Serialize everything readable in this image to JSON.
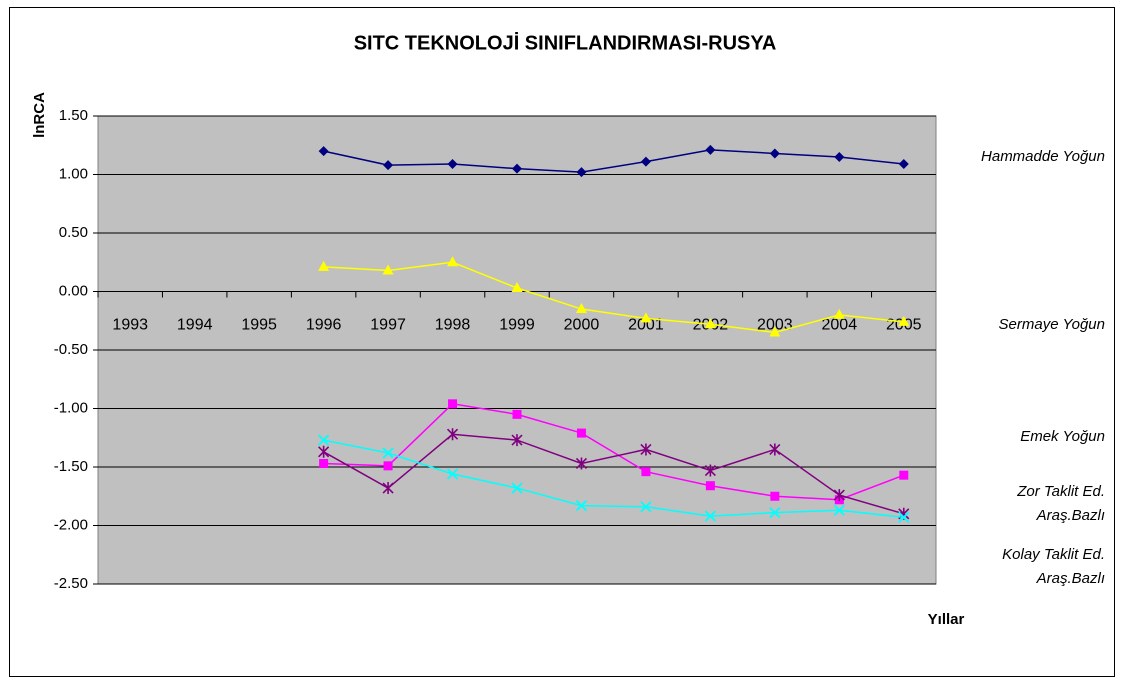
{
  "chart_data": {
    "type": "line",
    "title": "SITC TEKNOLOJİ SINIFLANDIRMASI-RUSYA",
    "y_label": "lnRCA",
    "x_label": "Yıllar",
    "categories": [
      "1993",
      "1994",
      "1995",
      "1996",
      "1997",
      "1998",
      "1999",
      "2000",
      "2001",
      "2002",
      "2003",
      "2004",
      "2005"
    ],
    "series": [
      {
        "name": "Hammadde Yoğun",
        "color": "#000080",
        "values": [
          null,
          null,
          null,
          1.2,
          1.08,
          1.09,
          1.05,
          1.02,
          1.11,
          1.21,
          1.18,
          1.15,
          1.09
        ]
      },
      {
        "name": "Sermaye Yoğun",
        "color": "#ffff00",
        "values": [
          null,
          null,
          null,
          0.21,
          0.18,
          0.25,
          0.03,
          -0.15,
          -0.23,
          -0.28,
          -0.35,
          -0.2,
          -0.26
        ]
      },
      {
        "name": "Emek Yoğun",
        "color": "#ff00ff",
        "values": [
          null,
          null,
          null,
          -1.47,
          -1.49,
          -0.96,
          -1.05,
          -1.21,
          -1.54,
          -1.66,
          -1.75,
          -1.78,
          -1.57
        ]
      },
      {
        "name": "Zor Taklit Ed. Araş.Bazlı",
        "color": "#800080",
        "values": [
          null,
          null,
          null,
          -1.37,
          -1.68,
          -1.22,
          -1.27,
          -1.47,
          -1.35,
          -1.53,
          -1.35,
          -1.74,
          -1.9
        ]
      },
      {
        "name": "Kolay Taklit Ed. Araş.Bazlı",
        "color": "#00ffff",
        "values": [
          null,
          null,
          null,
          -1.27,
          -1.38,
          -1.56,
          -1.68,
          -1.83,
          -1.84,
          -1.92,
          -1.89,
          -1.87,
          -1.93
        ]
      }
    ],
    "ylim": [
      -2.5,
      1.5
    ],
    "yticks": [
      {
        "value": 1.5,
        "label": "1.50"
      },
      {
        "value": 1,
        "label": "1.00"
      },
      {
        "value": 0.5,
        "label": "0.50"
      },
      {
        "value": 0,
        "label": "0.00"
      },
      {
        "value": -0.5,
        "label": "-0.50"
      },
      {
        "value": -1,
        "label": "-1.00"
      },
      {
        "value": -1.5,
        "label": "-1.50"
      },
      {
        "value": -2,
        "label": "-2.00"
      },
      {
        "value": -2.5,
        "label": "-2.50"
      }
    ],
    "grid": true
  }
}
